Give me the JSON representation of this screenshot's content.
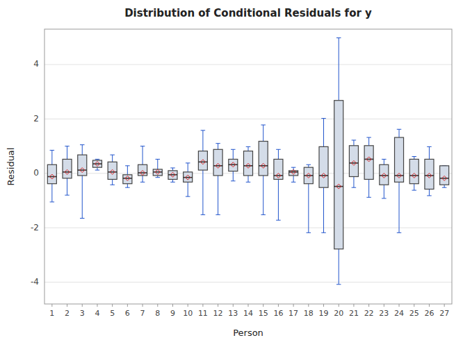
{
  "chart_data": {
    "type": "box",
    "title": "Distribution of Conditional Residuals for y",
    "x_label": "Person",
    "y_label": "Residual",
    "categories": [
      "1",
      "2",
      "3",
      "4",
      "5",
      "6",
      "7",
      "8",
      "9",
      "10",
      "11",
      "12",
      "13",
      "14",
      "15",
      "16",
      "17",
      "18",
      "19",
      "20",
      "21",
      "22",
      "23",
      "24",
      "25",
      "26",
      "27"
    ],
    "q1": [
      -0.38,
      -0.18,
      -0.08,
      0.22,
      -0.22,
      -0.38,
      -0.08,
      -0.08,
      -0.22,
      -0.32,
      0.12,
      -0.08,
      0.08,
      -0.08,
      -0.08,
      -0.22,
      -0.08,
      -0.38,
      -0.52,
      -2.78,
      -0.12,
      -0.22,
      -0.42,
      -0.32,
      -0.38,
      -0.58,
      -0.42
    ],
    "median": [
      -0.12,
      0.05,
      0.12,
      0.35,
      0.05,
      -0.18,
      0.02,
      0.05,
      -0.05,
      -0.15,
      0.42,
      0.28,
      0.32,
      0.28,
      0.28,
      -0.08,
      0.05,
      -0.08,
      -0.08,
      -0.48,
      0.38,
      0.52,
      -0.08,
      -0.08,
      -0.08,
      -0.08,
      -0.18
    ],
    "q3": [
      0.32,
      0.52,
      0.68,
      0.48,
      0.42,
      -0.05,
      0.32,
      0.15,
      0.1,
      0.05,
      0.82,
      0.88,
      0.52,
      0.82,
      1.18,
      0.52,
      0.1,
      0.22,
      0.98,
      2.68,
      1.02,
      1.02,
      0.32,
      1.32,
      0.52,
      0.52,
      0.28
    ],
    "whislo": [
      -1.05,
      -0.8,
      -1.65,
      0.12,
      -0.42,
      -0.52,
      -0.32,
      -0.15,
      -0.32,
      -0.85,
      -1.52,
      -1.52,
      -0.28,
      -0.32,
      -1.52,
      -1.72,
      -0.32,
      -2.18,
      -2.18,
      -4.08,
      -0.52,
      -0.88,
      -0.92,
      -2.18,
      -0.62,
      -0.82,
      -0.52
    ],
    "whishi": [
      0.85,
      1.0,
      1.05,
      0.52,
      0.68,
      0.28,
      1.0,
      0.52,
      0.2,
      0.38,
      1.58,
      1.1,
      0.88,
      0.98,
      1.78,
      0.88,
      0.22,
      0.32,
      2.02,
      4.98,
      1.22,
      1.32,
      0.52,
      1.62,
      0.62,
      0.98,
      0.28
    ],
    "mean": [
      -0.12,
      0.05,
      0.12,
      0.35,
      0.05,
      -0.18,
      0.02,
      0.05,
      -0.05,
      -0.15,
      0.42,
      0.28,
      0.32,
      0.28,
      0.28,
      -0.08,
      0.05,
      -0.08,
      -0.08,
      -0.48,
      0.38,
      0.52,
      -0.08,
      -0.08,
      -0.08,
      -0.08,
      -0.18
    ],
    "color": "#d4dce8",
    "ylim": [
      -4.8,
      5.3
    ],
    "yticks": [
      -4,
      -2,
      0,
      2,
      4
    ],
    "grid": true
  }
}
